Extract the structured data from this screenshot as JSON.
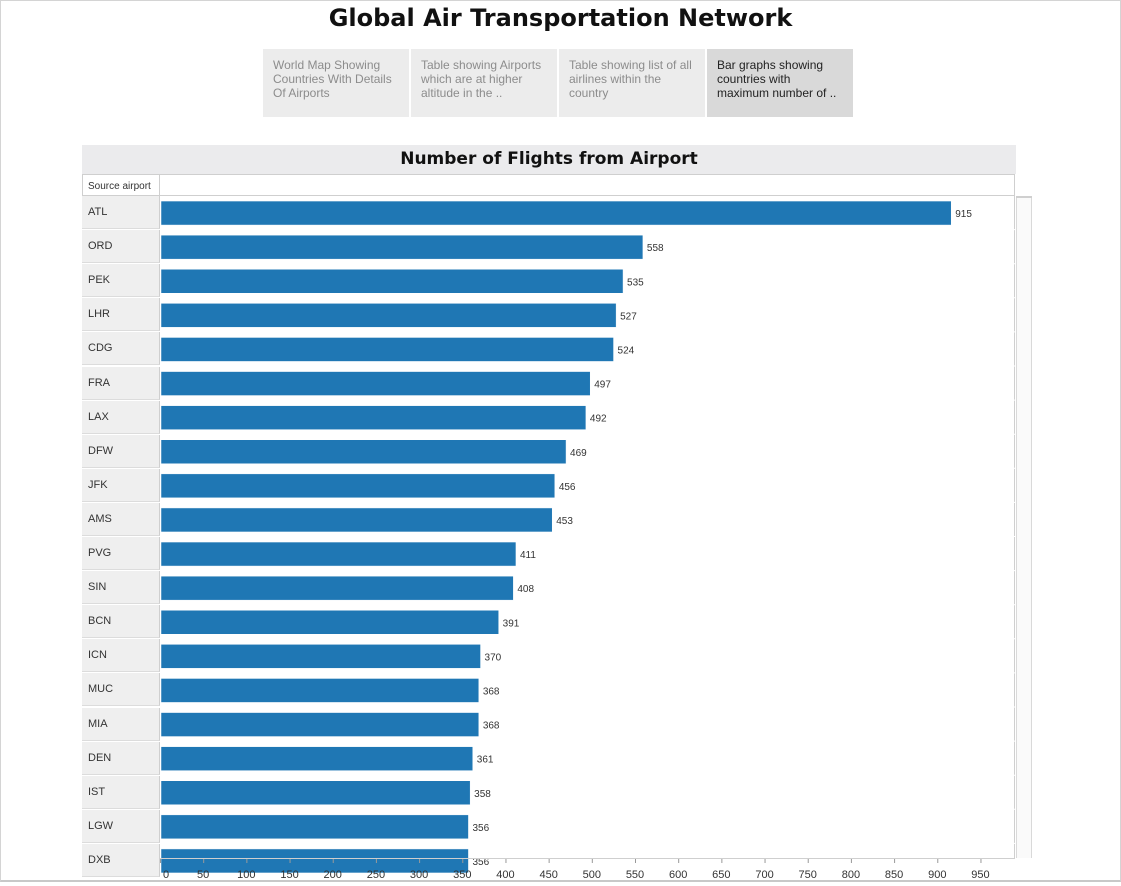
{
  "page": {
    "title": "Global Air Transportation Network"
  },
  "tabs": [
    {
      "label": "World Map Showing Countries With Details Of Airports",
      "active": false
    },
    {
      "label": "Table showing Airports which are at higher altitude in the ..",
      "active": false
    },
    {
      "label": "Table showing list of all airlines within the country",
      "active": false
    },
    {
      "label": "Bar graphs showing countries with maximum number of ..",
      "active": true
    }
  ],
  "chart": {
    "row_header": "Source airport"
  },
  "chart_data": {
    "type": "bar",
    "orientation": "horizontal",
    "title": "Number of Flights from Airport",
    "ylabel": "Source airport",
    "xlabel": "",
    "categories": [
      "ATL",
      "ORD",
      "PEK",
      "LHR",
      "CDG",
      "FRA",
      "LAX",
      "DFW",
      "JFK",
      "AMS",
      "PVG",
      "SIN",
      "BCN",
      "ICN",
      "MUC",
      "MIA",
      "DEN",
      "IST",
      "LGW",
      "DXB"
    ],
    "values": [
      915,
      558,
      535,
      527,
      524,
      497,
      492,
      469,
      456,
      453,
      411,
      408,
      391,
      370,
      368,
      368,
      361,
      358,
      356,
      356
    ],
    "xlim": [
      0,
      990
    ],
    "xticks": [
      0,
      50,
      100,
      150,
      200,
      250,
      300,
      350,
      400,
      450,
      500,
      550,
      600,
      650,
      700,
      750,
      800,
      850,
      900,
      950
    ],
    "bar_color": "#1f77b4",
    "grid": false,
    "data_labels": true
  }
}
